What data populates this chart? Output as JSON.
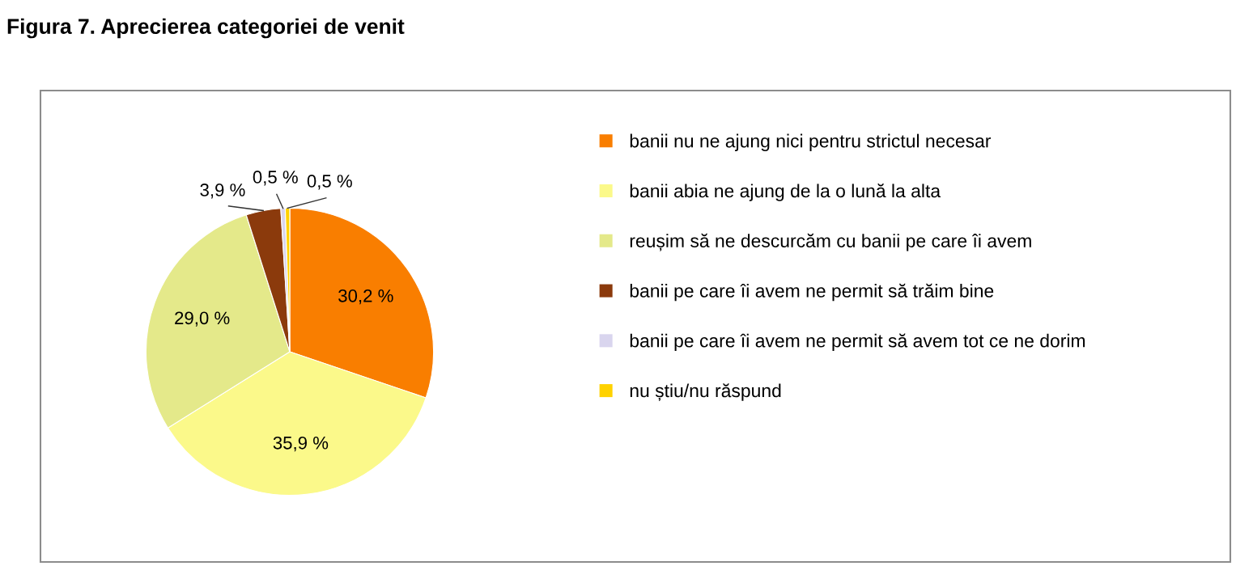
{
  "chart_data": {
    "type": "pie",
    "title": "Figura 7. Aprecierea categoriei de venit",
    "categories": [
      "banii nu ne ajung nici pentru strictul necesar",
      "banii abia ne ajung de la o lună la alta",
      "reușim să ne descurcăm cu banii pe care îi avem",
      "banii pe care îi avem ne permit să trăim bine",
      "banii pe care îi avem ne permit să avem tot ce ne dorim",
      "nu știu/nu răspund"
    ],
    "values": [
      30.2,
      35.9,
      29.0,
      3.9,
      0.5,
      0.5
    ],
    "colors": [
      "#f97e00",
      "#fbf98a",
      "#e4e98a",
      "#8b3a0c",
      "#d9d5ee",
      "#ffd200"
    ],
    "value_labels": [
      "30,2 %",
      "35,9 %",
      "29,0 %",
      "3,9 %",
      "0,5 %",
      "0,5 %"
    ],
    "legend": "right"
  }
}
